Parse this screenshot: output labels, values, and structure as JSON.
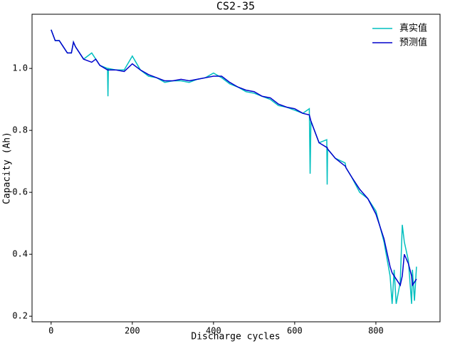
{
  "chart_data": {
    "type": "line",
    "title": "CS2-35",
    "xlabel": "Discharge cycles",
    "ylabel": "Capacity (Ah)",
    "x": [
      0,
      10,
      20,
      30,
      40,
      50,
      55,
      60,
      80,
      100,
      110,
      120,
      139,
      140,
      141,
      160,
      180,
      200,
      220,
      240,
      260,
      280,
      300,
      320,
      340,
      360,
      380,
      400,
      420,
      440,
      460,
      480,
      500,
      520,
      540,
      560,
      580,
      600,
      620,
      636,
      638,
      640,
      660,
      679,
      680,
      681,
      700,
      724,
      725,
      726,
      740,
      760,
      780,
      800,
      820,
      835,
      840,
      845,
      850,
      860,
      865,
      870,
      880,
      888,
      890,
      895,
      900
    ],
    "series": [
      {
        "name": "真实值",
        "color": "#00bfbf",
        "values": [
          1.125,
          1.09,
          1.09,
          1.07,
          1.05,
          1.05,
          1.085,
          1.07,
          1.03,
          1.05,
          1.03,
          1.01,
          1.0,
          0.91,
          1.0,
          0.995,
          0.995,
          1.04,
          0.995,
          0.975,
          0.97,
          0.955,
          0.96,
          0.96,
          0.955,
          0.965,
          0.97,
          0.985,
          0.97,
          0.95,
          0.94,
          0.925,
          0.92,
          0.91,
          0.9,
          0.88,
          0.875,
          0.865,
          0.855,
          0.87,
          0.66,
          0.83,
          0.76,
          0.77,
          0.625,
          0.74,
          0.71,
          0.695,
          0.69,
          0.68,
          0.65,
          0.6,
          0.58,
          0.54,
          0.44,
          0.33,
          0.24,
          0.35,
          0.24,
          0.31,
          0.495,
          0.44,
          0.38,
          0.24,
          0.35,
          0.25,
          0.36
        ]
      },
      {
        "name": "预测值",
        "color": "#0000cc",
        "values": [
          1.125,
          1.09,
          1.09,
          1.07,
          1.05,
          1.05,
          1.085,
          1.07,
          1.03,
          1.02,
          1.03,
          1.01,
          0.995,
          0.995,
          0.995,
          0.995,
          0.99,
          1.015,
          0.995,
          0.98,
          0.97,
          0.96,
          0.96,
          0.965,
          0.96,
          0.965,
          0.97,
          0.975,
          0.975,
          0.955,
          0.94,
          0.93,
          0.925,
          0.91,
          0.905,
          0.885,
          0.875,
          0.87,
          0.855,
          0.85,
          0.84,
          0.83,
          0.76,
          0.745,
          0.745,
          0.74,
          0.71,
          0.685,
          0.685,
          0.68,
          0.65,
          0.61,
          0.58,
          0.53,
          0.45,
          0.36,
          0.34,
          0.33,
          0.32,
          0.3,
          0.33,
          0.4,
          0.37,
          0.33,
          0.3,
          0.31,
          0.32
        ]
      }
    ],
    "xlim": [
      -47,
      958
    ],
    "xticks": [
      0,
      200,
      400,
      600,
      800
    ],
    "ylim": [
      0.182,
      1.175
    ],
    "yticks": [
      0.2,
      0.4,
      0.6,
      0.8,
      {
        "value": 1,
        "label": "1.0"
      }
    ],
    "grid": false,
    "legend": "upper right"
  }
}
